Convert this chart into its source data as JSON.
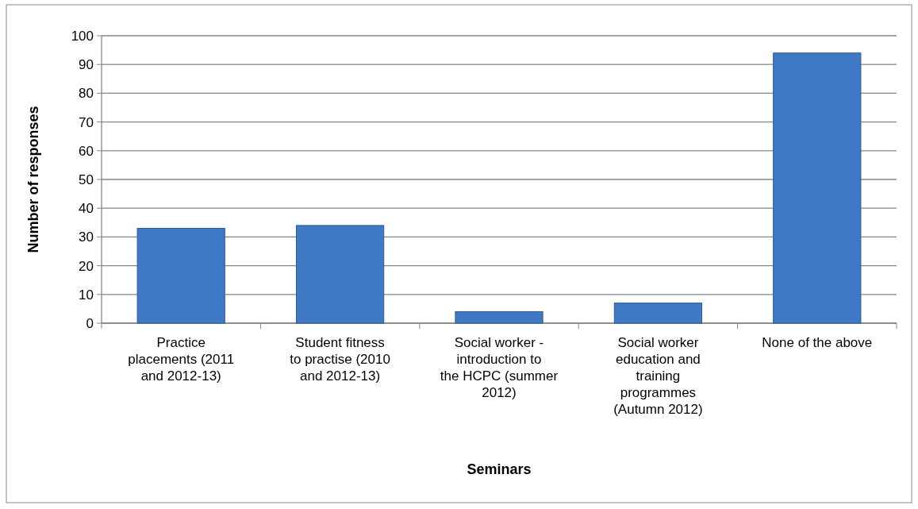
{
  "chart_data": {
    "type": "bar",
    "xlabel": "Seminars",
    "ylabel": "Number of responses",
    "categories": [
      "Practice placements (2011 and 2012-13)",
      "Student fitness to practise (2010 and 2012-13)",
      "Social worker - introduction to the HCPC (summer 2012)",
      "Social worker education and training programmes (Autumn 2012)",
      "None of the above"
    ],
    "values": [
      33,
      34,
      4,
      7,
      94
    ],
    "color": "#3f78c4",
    "ylim": [
      0,
      100
    ],
    "yticks": [
      0,
      10,
      20,
      30,
      40,
      50,
      60,
      70,
      80,
      90,
      100
    ],
    "grid": "y"
  }
}
